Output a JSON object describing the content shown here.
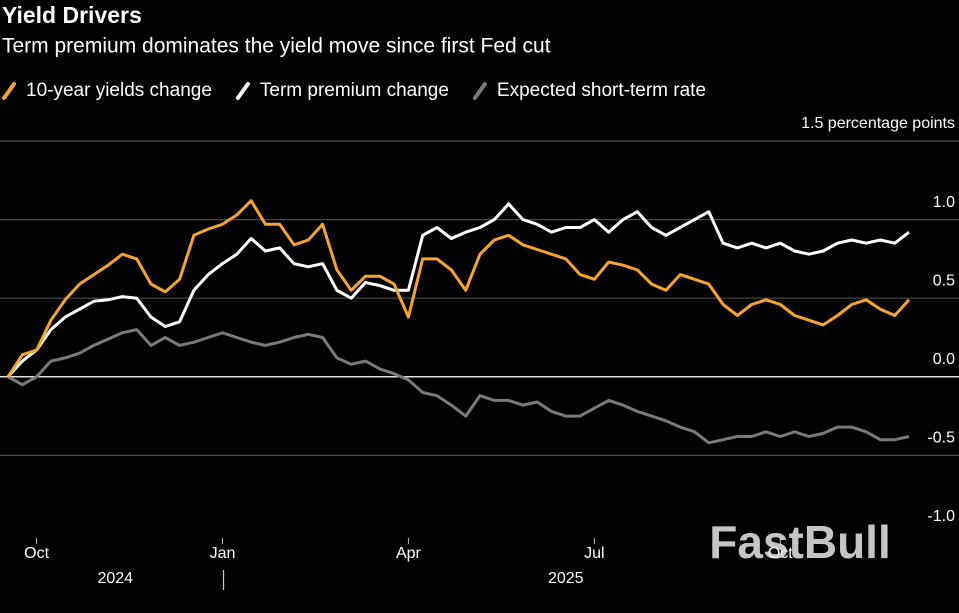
{
  "chart_data": {
    "type": "line",
    "title": "Yield Drivers",
    "subtitle": "Term premium dominates the yield move since first Fed cut",
    "watermark": "FastBull",
    "x": [
      "2024-09",
      "2024-09",
      "2024-10",
      "2024-10",
      "2024-10",
      "2024-10",
      "2024-10",
      "2024-11",
      "2024-11",
      "2024-11",
      "2024-11",
      "2024-12",
      "2024-12",
      "2024-12",
      "2024-12",
      "2025-01",
      "2025-01",
      "2025-01",
      "2025-01",
      "2025-01",
      "2025-02",
      "2025-02",
      "2025-02",
      "2025-02",
      "2025-03",
      "2025-03",
      "2025-03",
      "2025-03",
      "2025-04",
      "2025-04",
      "2025-04",
      "2025-04",
      "2025-04",
      "2025-05",
      "2025-05",
      "2025-05",
      "2025-05",
      "2025-06",
      "2025-06",
      "2025-06",
      "2025-06",
      "2025-07",
      "2025-07",
      "2025-07",
      "2025-07",
      "2025-07",
      "2025-08",
      "2025-08",
      "2025-08",
      "2025-08",
      "2025-09",
      "2025-09",
      "2025-09",
      "2025-09",
      "2025-10",
      "2025-10",
      "2025-10",
      "2025-10",
      "2025-10",
      "2025-11",
      "2025-11",
      "2025-11",
      "2025-11",
      "2025-12"
    ],
    "xticks": [
      {
        "value": "2024-10",
        "label": "Oct"
      },
      {
        "value": "2025-01",
        "label": "Jan"
      },
      {
        "value": "2025-04",
        "label": "Apr"
      },
      {
        "value": "2025-07",
        "label": "Jul"
      },
      {
        "value": "2025-10",
        "label": "Oct"
      }
    ],
    "year_labels": [
      "2024",
      "2025"
    ],
    "ylim": [
      -1.0,
      1.5
    ],
    "yticks": [
      {
        "value": -1.0,
        "label": "-1.0"
      },
      {
        "value": -0.5,
        "label": "-0.5"
      },
      {
        "value": 0,
        "label": "0.0"
      },
      {
        "value": 0.5,
        "label": "0.5"
      },
      {
        "value": 1.0,
        "label": "1.0"
      },
      {
        "value": 1.5,
        "label": "1.5 percentage points"
      }
    ],
    "grid": true,
    "series": [
      {
        "name": "10-year yields change",
        "color": "#f7a42c",
        "values": [
          0,
          0.14,
          0.17,
          0.36,
          0.49,
          0.59,
          0.65,
          0.71,
          0.78,
          0.75,
          0.59,
          0.54,
          0.62,
          0.9,
          0.94,
          0.97,
          1.03,
          1.12,
          0.97,
          0.97,
          0.84,
          0.87,
          0.97,
          0.68,
          0.55,
          0.64,
          0.64,
          0.59,
          0.38,
          0.75,
          0.75,
          0.68,
          0.55,
          0.78,
          0.87,
          0.9,
          0.84,
          0.81,
          0.78,
          0.75,
          0.65,
          0.62,
          0.73,
          0.71,
          0.68,
          0.59,
          0.55,
          0.65,
          0.62,
          0.59,
          0.46,
          0.39,
          0.46,
          0.49,
          0.46,
          0.39,
          0.36,
          0.33,
          0.39,
          0.46,
          0.49,
          0.43,
          0.39,
          0.49
        ]
      },
      {
        "name": "Term premium change",
        "color": "#ffffff",
        "values": [
          0,
          0.1,
          0.17,
          0.3,
          0.38,
          0.43,
          0.48,
          0.49,
          0.51,
          0.5,
          0.38,
          0.32,
          0.35,
          0.55,
          0.65,
          0.72,
          0.78,
          0.88,
          0.8,
          0.82,
          0.72,
          0.7,
          0.72,
          0.55,
          0.5,
          0.6,
          0.58,
          0.55,
          0.55,
          0.9,
          0.95,
          0.88,
          0.92,
          0.95,
          1.0,
          1.1,
          1.0,
          0.97,
          0.92,
          0.95,
          0.95,
          1.0,
          0.92,
          1.0,
          1.05,
          0.95,
          0.9,
          0.95,
          1.0,
          1.05,
          0.85,
          0.82,
          0.85,
          0.82,
          0.85,
          0.8,
          0.78,
          0.8,
          0.85,
          0.87,
          0.85,
          0.87,
          0.85,
          0.92
        ]
      },
      {
        "name": "Expected short-term rate",
        "color": "#7a7a7a",
        "values": [
          0,
          -0.05,
          0,
          0.1,
          0.12,
          0.15,
          0.2,
          0.24,
          0.28,
          0.3,
          0.2,
          0.25,
          0.2,
          0.22,
          0.25,
          0.28,
          0.25,
          0.22,
          0.2,
          0.22,
          0.25,
          0.27,
          0.25,
          0.12,
          0.08,
          0.1,
          0.05,
          0.02,
          -0.02,
          -0.1,
          -0.12,
          -0.18,
          -0.25,
          -0.12,
          -0.15,
          -0.15,
          -0.18,
          -0.16,
          -0.22,
          -0.25,
          -0.25,
          -0.2,
          -0.15,
          -0.18,
          -0.22,
          -0.25,
          -0.28,
          -0.32,
          -0.35,
          -0.42,
          -0.4,
          -0.38,
          -0.38,
          -0.35,
          -0.38,
          -0.35,
          -0.38,
          -0.36,
          -0.32,
          -0.32,
          -0.35,
          -0.4,
          -0.4,
          -0.38
        ]
      }
    ]
  }
}
